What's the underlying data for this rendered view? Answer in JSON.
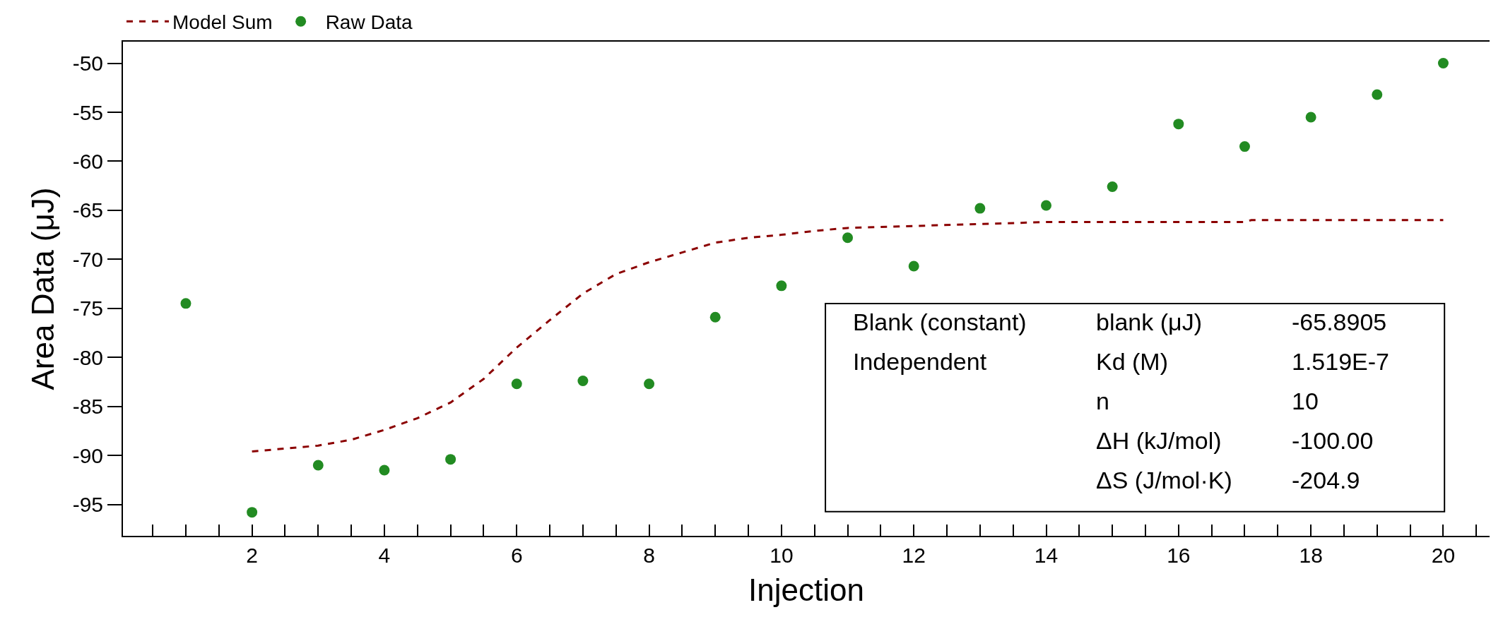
{
  "chart_data": {
    "type": "scatter",
    "xlabel": "Injection",
    "ylabel": "Area Data (μJ)",
    "xlim": [
      0.05,
      20.7
    ],
    "xticks": [
      {
        "value": 0.5,
        "label": null
      },
      {
        "value": 1,
        "label": null
      },
      {
        "value": 1.5,
        "label": null
      },
      2,
      {
        "value": 2.5,
        "label": null
      },
      {
        "value": 3,
        "label": null
      },
      {
        "value": 3.5,
        "label": null
      },
      4,
      {
        "value": 4.5,
        "label": null
      },
      {
        "value": 5,
        "label": null
      },
      {
        "value": 5.5,
        "label": null
      },
      6,
      {
        "value": 6.5,
        "label": null
      },
      {
        "value": 7,
        "label": null
      },
      {
        "value": 7.5,
        "label": null
      },
      8,
      {
        "value": 8.5,
        "label": null
      },
      {
        "value": 9,
        "label": null
      },
      {
        "value": 9.5,
        "label": null
      },
      10,
      {
        "value": 10.5,
        "label": null
      },
      {
        "value": 11,
        "label": null
      },
      {
        "value": 11.5,
        "label": null
      },
      12,
      {
        "value": 12.5,
        "label": null
      },
      {
        "value": 13,
        "label": null
      },
      {
        "value": 13.5,
        "label": null
      },
      14,
      {
        "value": 14.5,
        "label": null
      },
      {
        "value": 15,
        "label": null
      },
      {
        "value": 15.5,
        "label": null
      },
      16,
      {
        "value": 16.5,
        "label": null
      },
      {
        "value": 17,
        "label": null
      },
      {
        "value": 17.5,
        "label": null
      },
      18,
      {
        "value": 18.5,
        "label": null
      },
      {
        "value": 19,
        "label": null
      },
      {
        "value": 19.5,
        "label": null
      },
      20,
      {
        "value": 20.5,
        "label": null
      }
    ],
    "ylim": [
      -98.2,
      -47.8
    ],
    "yticks": [
      -50,
      -55,
      -60,
      -65,
      -70,
      -75,
      -80,
      -85,
      -90,
      -95
    ],
    "grid": false,
    "legend": "top left",
    "series": [
      {
        "name": "Model Sum",
        "type": "line",
        "color": "#8b0000",
        "line_style": "dashed",
        "marker": "none",
        "x": [
          2,
          2.5,
          3,
          3.5,
          4,
          4.5,
          5,
          5.5,
          6,
          6.5,
          7,
          7.5,
          8,
          8.5,
          9,
          9.5,
          10,
          10.5,
          11,
          12,
          13,
          14,
          15,
          16,
          17,
          17.1,
          20
        ],
        "values": [
          -89.6,
          -89.3,
          -89.0,
          -88.4,
          -87.4,
          -86.2,
          -84.6,
          -82.2,
          -79.0,
          -76.2,
          -73.5,
          -71.5,
          -70.3,
          -69.3,
          -68.3,
          -67.8,
          -67.5,
          -67.1,
          -66.8,
          -66.6,
          -66.4,
          -66.2,
          -66.2,
          -66.2,
          -66.2,
          -66.0,
          -66.0
        ]
      },
      {
        "name": "Raw Data",
        "color": "#228b22",
        "marker": "circle",
        "x": [
          1,
          2,
          3,
          4,
          5,
          6,
          7,
          8,
          9,
          10,
          11,
          12,
          13,
          14,
          15,
          16,
          17,
          18,
          19,
          20
        ],
        "values": [
          -74.5,
          -95.8,
          -91.0,
          -91.5,
          -90.4,
          -82.7,
          -82.4,
          -82.7,
          -75.9,
          -72.7,
          -67.8,
          -70.7,
          -64.8,
          -64.5,
          -62.6,
          -56.2,
          -58.5,
          -55.5,
          -53.2,
          -50.0
        ]
      }
    ],
    "annotations": [
      "Blank (constant)",
      "blank (μJ)",
      "-65.8905",
      "Independent",
      "Kd (M)",
      "1.519E-7",
      "n",
      "10",
      "ΔH (kJ/mol)",
      "-100.00",
      "ΔS (J/mol·K)",
      "-204.9"
    ]
  }
}
